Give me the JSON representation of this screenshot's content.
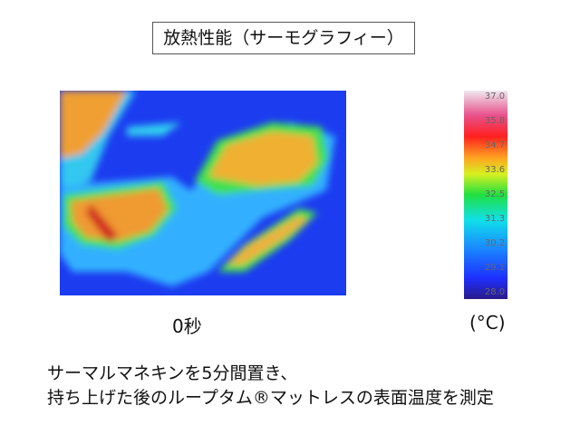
{
  "header": {
    "title": "放熱性能（サーモグラフィー）"
  },
  "image": {
    "caption": "0秒"
  },
  "scale": {
    "unit": "(°C)",
    "ticks": [
      "37.0",
      "35.8",
      "34.7",
      "33.6",
      "32.5",
      "31.3",
      "30.2",
      "29.1",
      "28.0"
    ]
  },
  "description": {
    "lines": [
      "サーマルマネキンを5分間置き、",
      "持ち上げた後のループタム®マットレスの表面温度を測定"
    ]
  }
}
